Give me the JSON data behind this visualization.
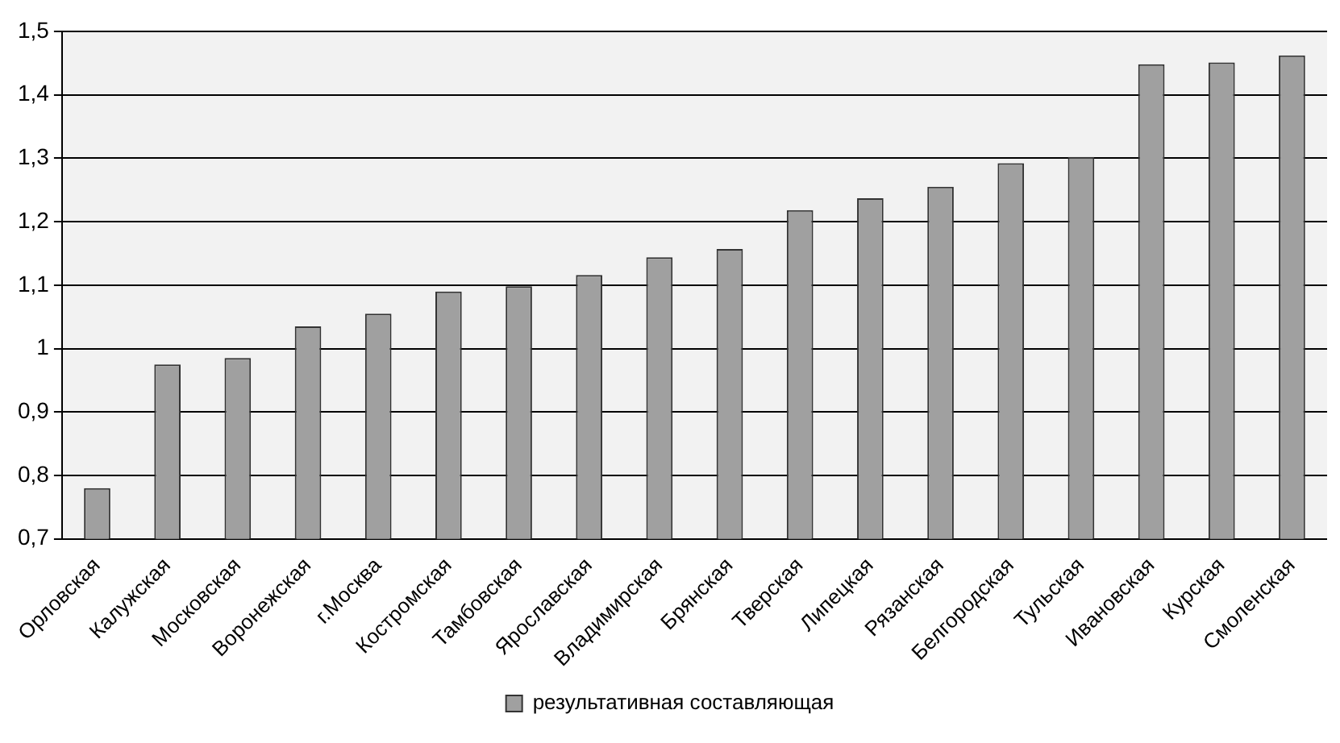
{
  "chart_data": {
    "type": "bar",
    "categories": [
      "Орловская",
      "Калужская",
      "Московская",
      "Воронежская",
      "г.Москва",
      "Костромская",
      "Тамбовская",
      "Ярославская",
      "Владимирская",
      "Брянская",
      "Тверская",
      "Липецкая",
      "Рязанская",
      "Белгородская",
      "Тульская",
      "Ивановская",
      "Курская",
      "Смоленская"
    ],
    "series": [
      {
        "name": "результативная составляющая",
        "color": "#a0a0a0",
        "values": [
          0.78,
          0.975,
          0.985,
          1.035,
          1.055,
          1.09,
          1.098,
          1.116,
          1.144,
          1.157,
          1.218,
          1.237,
          1.255,
          1.292,
          1.302,
          1.448,
          1.451,
          1.462
        ]
      }
    ],
    "ylim": [
      0.7,
      1.5
    ],
    "yticks": [
      {
        "value": 0.7,
        "label": "0,7"
      },
      {
        "value": 0.8,
        "label": "0,8"
      },
      {
        "value": 0.9,
        "label": "0,9"
      },
      1,
      {
        "value": 1.1,
        "label": "1,1"
      },
      {
        "value": 1.2,
        "label": "1,2"
      },
      {
        "value": 1.3,
        "label": "1,3"
      },
      {
        "value": 1.4,
        "label": "1,4"
      },
      {
        "value": 1.5,
        "label": "1,5"
      }
    ],
    "grid": "y",
    "legend": "bottom"
  }
}
